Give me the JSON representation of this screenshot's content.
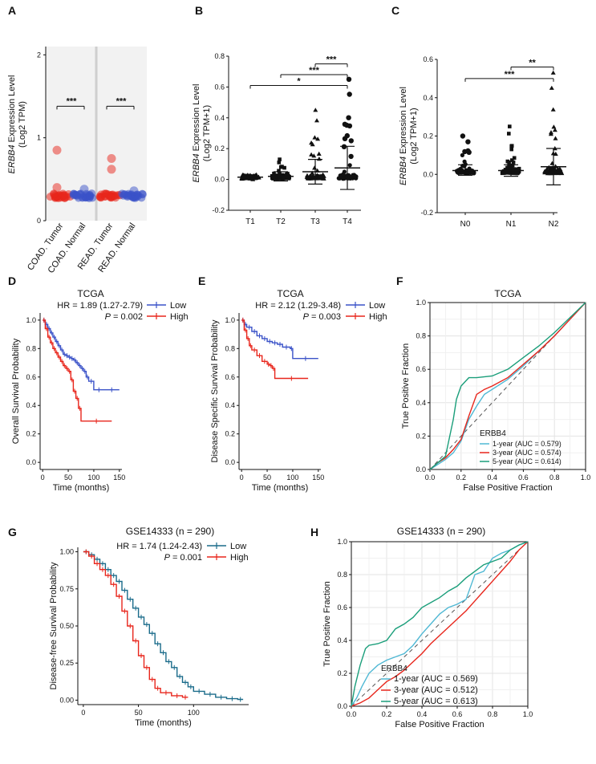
{
  "panels": {
    "A": {
      "label": "A"
    },
    "B": {
      "label": "B"
    },
    "C": {
      "label": "C"
    },
    "D": {
      "label": "D"
    },
    "E": {
      "label": "E"
    },
    "F": {
      "label": "F"
    },
    "G": {
      "label": "G"
    },
    "H": {
      "label": "H"
    }
  },
  "colors": {
    "red": "#e8261c",
    "blue": "#3a52c8",
    "redSoft": "#e64a4a",
    "blueSoft": "#4a62d8",
    "cyan": "#4fb8d4",
    "teal": "#1a9e7a",
    "green": "#1a9e7a",
    "black": "#111111"
  },
  "chart_data": [
    {
      "id": "A",
      "type": "scatter",
      "title": "",
      "ylabel_gene": "ERBB4",
      "ylabel_rest": " Expression Level",
      "ylabel2": "(Log2 TPM)",
      "yticks": [
        "0",
        "1",
        "2"
      ],
      "ylim": [
        0,
        2.1
      ],
      "categories": [
        "COAD. Tumor",
        "COAD. Normal",
        "READ. Tumor",
        "READ. Normal"
      ],
      "group_colors": [
        "#e8261c",
        "#3a52c8",
        "#e8261c",
        "#3a52c8"
      ],
      "cluster_level": [
        0.3,
        0.3,
        0.3,
        0.3
      ],
      "outliers": [
        {
          "group": 0,
          "y": 0.85
        },
        {
          "group": 2,
          "y": 0.75
        },
        {
          "group": 2,
          "y": 0.62
        },
        {
          "group": 0,
          "y": 0.4
        },
        {
          "group": 1,
          "y": 0.38
        },
        {
          "group": 3,
          "y": 0.36
        }
      ],
      "significance": [
        {
          "from": 0,
          "to": 1,
          "y": 1.38,
          "label": "***"
        },
        {
          "from": 2,
          "to": 3,
          "y": 1.38,
          "label": "***"
        }
      ]
    },
    {
      "id": "B",
      "type": "scatter",
      "ylabel_gene": "ERBB4",
      "ylabel_rest": " Expression Level",
      "ylabel2": "(Log2 TPM+1)",
      "ylim": [
        -0.2,
        0.8
      ],
      "yticks": [
        "-0.2",
        "0.0",
        "0.2",
        "0.4",
        "0.6",
        "0.8"
      ],
      "categories": [
        "T1",
        "T2",
        "T3",
        "T4"
      ],
      "means": [
        0.015,
        0.02,
        0.05,
        0.075
      ],
      "sd_upper": [
        0.03,
        0.05,
        0.13,
        0.215
      ],
      "sd_lower": [
        0.0,
        -0.01,
        -0.03,
        -0.065
      ],
      "max_points": [
        0.03,
        0.13,
        0.45,
        0.65
      ],
      "significance": [
        {
          "from": 2,
          "to": 3,
          "y": 0.75,
          "label": "***"
        },
        {
          "from": 1,
          "to": 3,
          "y": 0.68,
          "label": "***"
        },
        {
          "from": 0,
          "to": 3,
          "y": 0.61,
          "label": "*"
        }
      ]
    },
    {
      "id": "C",
      "type": "scatter",
      "ylabel_gene": "ERBB4",
      "ylabel_rest": " Expression Level",
      "ylabel2": "(Log2 TPM+1)",
      "ylim": [
        -0.2,
        0.6
      ],
      "yticks": [
        "-0.2",
        "0.0",
        "0.2",
        "0.4",
        "0.6"
      ],
      "categories": [
        "N0",
        "N1",
        "N2"
      ],
      "means": [
        0.02,
        0.02,
        0.04
      ],
      "sd_upper": [
        0.05,
        0.05,
        0.135
      ],
      "sd_lower": [
        -0.005,
        -0.01,
        -0.055
      ],
      "max_points": [
        0.2,
        0.25,
        0.53
      ],
      "significance": [
        {
          "from": 1,
          "to": 2,
          "y": 0.56,
          "label": "**"
        },
        {
          "from": 0,
          "to": 2,
          "y": 0.5,
          "label": "***"
        }
      ]
    },
    {
      "id": "D",
      "type": "line",
      "title": "TCGA",
      "hr": "HR = 1.89 (1.27-2.79)",
      "p_italic": "P",
      "p_rest": " = 0.002",
      "xlabel": "Time (months)",
      "ylabel": "Overall Survival Probability",
      "xlim": [
        -5,
        155
      ],
      "ylim": [
        -0.05,
        1.05
      ],
      "xticks": [
        "0",
        "50",
        "100",
        "150"
      ],
      "yticks": [
        "0.0",
        "0.2",
        "0.4",
        "0.6",
        "0.8",
        "1.0"
      ],
      "legend": [
        "Low",
        "High"
      ],
      "series": [
        {
          "name": "Low",
          "color": "#3a52c8",
          "x": [
            0,
            5,
            10,
            15,
            20,
            25,
            30,
            35,
            40,
            45,
            50,
            55,
            60,
            65,
            70,
            75,
            80,
            85,
            90,
            100,
            120,
            150
          ],
          "y": [
            1.0,
            0.97,
            0.94,
            0.91,
            0.88,
            0.85,
            0.82,
            0.79,
            0.76,
            0.75,
            0.74,
            0.73,
            0.72,
            0.7,
            0.68,
            0.66,
            0.64,
            0.6,
            0.57,
            0.51,
            0.51,
            0.51
          ]
        },
        {
          "name": "High",
          "color": "#e8261c",
          "x": [
            0,
            5,
            10,
            15,
            20,
            25,
            30,
            35,
            40,
            45,
            50,
            55,
            60,
            65,
            70,
            75,
            135
          ],
          "y": [
            1.0,
            0.94,
            0.88,
            0.84,
            0.8,
            0.77,
            0.74,
            0.71,
            0.68,
            0.66,
            0.64,
            0.58,
            0.5,
            0.45,
            0.38,
            0.29,
            0.29
          ]
        }
      ]
    },
    {
      "id": "E",
      "type": "line",
      "title": "TCGA",
      "hr": "HR = 2.12 (1.29-3.48)",
      "p_italic": "P",
      "p_rest": " = 0.003",
      "xlabel": "Time (months)",
      "ylabel": "Disease Specific Survival Probability",
      "xlim": [
        -5,
        155
      ],
      "ylim": [
        -0.05,
        1.05
      ],
      "xticks": [
        "0",
        "50",
        "100",
        "150"
      ],
      "yticks": [
        "0.0",
        "0.2",
        "0.4",
        "0.6",
        "0.8",
        "1.0"
      ],
      "legend": [
        "Low",
        "High"
      ],
      "series": [
        {
          "name": "Low",
          "color": "#3a52c8",
          "x": [
            0,
            5,
            10,
            20,
            30,
            40,
            50,
            60,
            70,
            80,
            95,
            100,
            150
          ],
          "y": [
            1.0,
            0.97,
            0.95,
            0.92,
            0.89,
            0.87,
            0.85,
            0.84,
            0.83,
            0.81,
            0.8,
            0.73,
            0.73
          ]
        },
        {
          "name": "High",
          "color": "#e8261c",
          "x": [
            0,
            5,
            10,
            15,
            20,
            30,
            40,
            50,
            55,
            60,
            65,
            130
          ],
          "y": [
            1.0,
            0.93,
            0.87,
            0.82,
            0.79,
            0.75,
            0.71,
            0.69,
            0.68,
            0.66,
            0.59,
            0.59
          ]
        }
      ]
    },
    {
      "id": "F",
      "type": "line",
      "title": "TCGA",
      "xlabel": "False Positive Fraction",
      "ylabel": "True Positive Fraction",
      "xlim": [
        0,
        1
      ],
      "ylim": [
        0,
        1
      ],
      "xticks": [
        "0.0",
        "0.2",
        "0.4",
        "0.6",
        "0.8",
        "1.0"
      ],
      "yticks": [
        "0.0",
        "0.2",
        "0.4",
        "0.6",
        "0.8",
        "1.0"
      ],
      "legend_title": "ERBB4",
      "series": [
        {
          "name": "1-year (AUC = 0.579)",
          "color": "#4fb8d4",
          "x": [
            0,
            0.05,
            0.1,
            0.15,
            0.2,
            0.25,
            0.3,
            0.35,
            0.4,
            0.5,
            0.6,
            0.7,
            0.8,
            0.9,
            1.0
          ],
          "y": [
            0,
            0.03,
            0.06,
            0.1,
            0.17,
            0.3,
            0.38,
            0.45,
            0.48,
            0.54,
            0.62,
            0.71,
            0.8,
            0.9,
            1.0
          ]
        },
        {
          "name": "3-year (AUC = 0.574)",
          "color": "#e8261c",
          "x": [
            0,
            0.05,
            0.1,
            0.15,
            0.2,
            0.25,
            0.3,
            0.35,
            0.4,
            0.5,
            0.6,
            0.7,
            0.8,
            0.9,
            1.0
          ],
          "y": [
            0,
            0.04,
            0.07,
            0.12,
            0.18,
            0.32,
            0.45,
            0.48,
            0.5,
            0.55,
            0.63,
            0.71,
            0.8,
            0.9,
            1.0
          ]
        },
        {
          "name": "5-year (AUC = 0.614)",
          "color": "#1a9e7a",
          "x": [
            0,
            0.05,
            0.1,
            0.15,
            0.17,
            0.2,
            0.25,
            0.3,
            0.4,
            0.5,
            0.6,
            0.7,
            0.8,
            0.9,
            1.0
          ],
          "y": [
            0,
            0.04,
            0.08,
            0.3,
            0.42,
            0.5,
            0.55,
            0.55,
            0.56,
            0.6,
            0.67,
            0.74,
            0.82,
            0.91,
            1.0
          ]
        }
      ]
    },
    {
      "id": "G",
      "type": "line",
      "title": "GSE14333 (n = 290)",
      "hr": "HR = 1.74 (1.24-2.43)",
      "p_italic": "P",
      "p_rest": " = 0.001",
      "xlabel": "Time (months)",
      "ylabel": "Disease-free Survival Probability",
      "xlim": [
        -5,
        150
      ],
      "ylim": [
        -0.03,
        1.03
      ],
      "xticks": [
        "0",
        "50",
        "100"
      ],
      "yticks": [
        "0.00",
        "0.25",
        "0.50",
        "0.75",
        "1.00"
      ],
      "legend": [
        "Low",
        "High"
      ],
      "series": [
        {
          "name": "Low",
          "color": "#1a6b8a",
          "x": [
            0,
            5,
            10,
            15,
            20,
            25,
            30,
            35,
            40,
            45,
            50,
            55,
            60,
            65,
            70,
            75,
            80,
            85,
            90,
            95,
            100,
            110,
            120,
            130,
            140,
            145
          ],
          "y": [
            1.0,
            0.98,
            0.95,
            0.92,
            0.88,
            0.84,
            0.8,
            0.74,
            0.68,
            0.62,
            0.56,
            0.51,
            0.45,
            0.38,
            0.32,
            0.26,
            0.22,
            0.16,
            0.12,
            0.09,
            0.06,
            0.04,
            0.02,
            0.01,
            0.005,
            0.005
          ]
        },
        {
          "name": "High",
          "color": "#e8261c",
          "x": [
            0,
            5,
            10,
            15,
            20,
            25,
            30,
            35,
            40,
            45,
            50,
            55,
            60,
            65,
            70,
            80,
            90,
            95
          ],
          "y": [
            1.0,
            0.97,
            0.92,
            0.88,
            0.84,
            0.78,
            0.7,
            0.6,
            0.5,
            0.4,
            0.3,
            0.22,
            0.14,
            0.08,
            0.05,
            0.03,
            0.02,
            0.02
          ]
        }
      ]
    },
    {
      "id": "H",
      "type": "line",
      "title": "GSE14333 (n = 290)",
      "xlabel": "False Positive Fraction",
      "ylabel": "True Positive Fraction",
      "xlim": [
        0,
        1
      ],
      "ylim": [
        0,
        1
      ],
      "xticks": [
        "0.0",
        "0.2",
        "0.4",
        "0.6",
        "0.8",
        "1.0"
      ],
      "yticks": [
        "0.0",
        "0.2",
        "0.4",
        "0.6",
        "0.8",
        "1.0"
      ],
      "legend_title": "ERBB4",
      "series": [
        {
          "name": "1-year (AUC = 0.569)",
          "color": "#4fb8d4",
          "x": [
            0,
            0.03,
            0.06,
            0.1,
            0.15,
            0.2,
            0.25,
            0.3,
            0.35,
            0.4,
            0.45,
            0.5,
            0.55,
            0.6,
            0.65,
            0.7,
            0.75,
            0.8,
            0.85,
            0.9,
            0.95,
            1.0
          ],
          "y": [
            0,
            0.05,
            0.12,
            0.2,
            0.25,
            0.28,
            0.3,
            0.32,
            0.37,
            0.44,
            0.5,
            0.56,
            0.6,
            0.62,
            0.65,
            0.8,
            0.82,
            0.9,
            0.93,
            0.95,
            0.98,
            1.0
          ]
        },
        {
          "name": "3-year (AUC = 0.512)",
          "color": "#e8261c",
          "x": [
            0,
            0.05,
            0.1,
            0.15,
            0.2,
            0.25,
            0.3,
            0.35,
            0.4,
            0.45,
            0.5,
            0.55,
            0.6,
            0.65,
            0.7,
            0.75,
            0.8,
            0.85,
            0.9,
            0.95,
            1.0
          ],
          "y": [
            0,
            0.02,
            0.05,
            0.1,
            0.15,
            0.18,
            0.22,
            0.27,
            0.32,
            0.38,
            0.43,
            0.48,
            0.53,
            0.58,
            0.64,
            0.7,
            0.76,
            0.82,
            0.88,
            0.95,
            1.0
          ]
        },
        {
          "name": "5-year (AUC = 0.613)",
          "color": "#1a9e7a",
          "x": [
            0,
            0.02,
            0.05,
            0.08,
            0.1,
            0.15,
            0.2,
            0.25,
            0.3,
            0.35,
            0.4,
            0.45,
            0.5,
            0.55,
            0.6,
            0.65,
            0.7,
            0.75,
            0.8,
            0.85,
            0.9,
            0.95,
            1.0
          ],
          "y": [
            0,
            0.12,
            0.25,
            0.35,
            0.37,
            0.38,
            0.4,
            0.47,
            0.5,
            0.54,
            0.6,
            0.63,
            0.66,
            0.7,
            0.73,
            0.78,
            0.82,
            0.86,
            0.88,
            0.9,
            0.95,
            0.98,
            1.0
          ]
        }
      ]
    }
  ]
}
